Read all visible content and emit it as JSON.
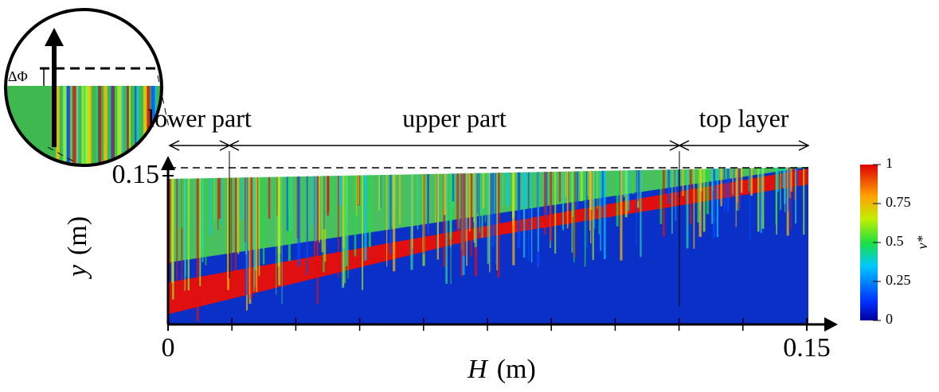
{
  "x_axis": {
    "variable": "H",
    "unit": "(m)",
    "ticks": [
      0,
      0.15
    ]
  },
  "y_axis": {
    "variable": "y",
    "unit": "(m)",
    "ticks": [
      0.15
    ]
  },
  "regions": [
    "lower part",
    "upper part",
    "top layer"
  ],
  "inset_label": "ΔΦ",
  "colorbar": {
    "label": "v*",
    "ticks": [
      0,
      0.25,
      0.5,
      0.75,
      1
    ]
  }
}
